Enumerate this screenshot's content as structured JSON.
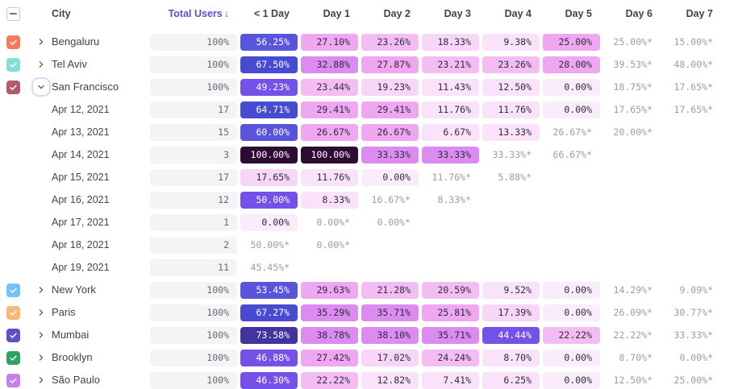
{
  "table": {
    "header": {
      "city": "City",
      "total_users": "Total Users",
      "sort_arrow": "↓",
      "days": [
        "< 1 Day",
        "Day 1",
        "Day 2",
        "Day 3",
        "Day 4",
        "Day 5",
        "Day 6",
        "Day 7"
      ],
      "select_all_state": "indeterminate"
    },
    "rows": [
      {
        "kind": "city",
        "label": "Bengaluru",
        "checkbox_color": "#F87A5E",
        "checked": true,
        "expanded": false,
        "total": "100%",
        "cells": [
          "56.25%",
          "27.10%",
          "23.26%",
          "18.33%",
          "9.38%",
          "25.00%",
          "25.00%*",
          "15.00%*"
        ]
      },
      {
        "kind": "city",
        "label": "Tel Aviv",
        "checkbox_color": "#7FE0D3",
        "checked": true,
        "expanded": false,
        "total": "100%",
        "cells": [
          "67.50%",
          "32.88%",
          "27.87%",
          "23.21%",
          "23.26%",
          "28.00%",
          "39.53%*",
          "48.00%*"
        ]
      },
      {
        "kind": "city",
        "label": "San Francisco",
        "checkbox_color": "#B25B6B",
        "checked": true,
        "expanded": true,
        "total": "100%",
        "cells": [
          "49.23%",
          "23.44%",
          "19.23%",
          "11.43%",
          "12.50%",
          "0.00%",
          "18.75%*",
          "17.65%*"
        ]
      },
      {
        "kind": "date",
        "label": "Apr 12, 2021",
        "total": "17",
        "cells": [
          "64.71%",
          "29.41%",
          "29.41%",
          "11.76%",
          "11.76%",
          "0.00%",
          "17.65%*",
          "17.65%*"
        ]
      },
      {
        "kind": "date",
        "label": "Apr 13, 2021",
        "total": "15",
        "cells": [
          "60.00%",
          "26.67%",
          "26.67%",
          "6.67%",
          "13.33%",
          "26.67%*",
          "20.00%*",
          ""
        ]
      },
      {
        "kind": "date",
        "label": "Apr 14, 2021",
        "total": "3",
        "cells": [
          "100.00%",
          "100.00%",
          "33.33%",
          "33.33%",
          "33.33%*",
          "66.67%*",
          "",
          ""
        ]
      },
      {
        "kind": "date",
        "label": "Apr 15, 2021",
        "total": "17",
        "cells": [
          "17.65%",
          "11.76%",
          "0.00%",
          "11.76%*",
          "5.88%*",
          "",
          "",
          ""
        ]
      },
      {
        "kind": "date",
        "label": "Apr 16, 2021",
        "total": "12",
        "cells": [
          "50.00%",
          "8.33%",
          "16.67%*",
          "8.33%*",
          "",
          "",
          "",
          ""
        ]
      },
      {
        "kind": "date",
        "label": "Apr 17, 2021",
        "total": "1",
        "cells": [
          "0.00%",
          "0.00%*",
          "0.00%*",
          "",
          "",
          "",
          "",
          ""
        ]
      },
      {
        "kind": "date",
        "label": "Apr 18, 2021",
        "total": "2",
        "cells": [
          "50.00%*",
          "0.00%*",
          "",
          "",
          "",
          "",
          "",
          ""
        ]
      },
      {
        "kind": "date",
        "label": "Apr 19, 2021",
        "total": "11",
        "cells": [
          "45.45%*",
          "",
          "",
          "",
          "",
          "",
          "",
          ""
        ]
      },
      {
        "kind": "city",
        "label": "New York",
        "checkbox_color": "#70C3F4",
        "checked": true,
        "expanded": false,
        "total": "100%",
        "cells": [
          "53.45%",
          "29.63%",
          "21.28%",
          "20.59%",
          "9.52%",
          "0.00%",
          "14.29%*",
          "9.09%*"
        ]
      },
      {
        "kind": "city",
        "label": "Paris",
        "checkbox_color": "#FAB87E",
        "checked": true,
        "expanded": false,
        "total": "100%",
        "cells": [
          "67.27%",
          "35.29%",
          "35.71%",
          "25.81%",
          "17.39%",
          "0.00%",
          "26.09%*",
          "30.77%*"
        ]
      },
      {
        "kind": "city",
        "label": "Mumbai",
        "checkbox_color": "#5C51CB",
        "checked": true,
        "expanded": false,
        "total": "100%",
        "cells": [
          "73.58%",
          "38.78%",
          "38.10%",
          "35.71%",
          "44.44%",
          "22.22%",
          "22.22%*",
          "33.33%*"
        ]
      },
      {
        "kind": "city",
        "label": "Brooklyn",
        "checkbox_color": "#30A364",
        "checked": true,
        "expanded": false,
        "total": "100%",
        "cells": [
          "46.88%",
          "27.42%",
          "17.02%",
          "24.24%",
          "8.70%",
          "0.00%",
          "8.70%*",
          "0.00%*"
        ]
      },
      {
        "kind": "city",
        "label": "São Paulo",
        "checkbox_color": "#C77FE9",
        "checked": true,
        "expanded": false,
        "total": "100%",
        "cells": [
          "46.30%",
          "22.22%",
          "12.82%",
          "7.41%",
          "6.25%",
          "0.00%",
          "12.50%*",
          "25.00%*"
        ]
      }
    ]
  },
  "colors": {
    "accent_sort": "#5A50D5",
    "partial_text": "#9C9CA6",
    "total_pill_bg": "#F4F3F6",
    "total_pill_text": "#68676F",
    "light_cell_text": "#2E2E3A",
    "ramp": [
      {
        "min": 90,
        "bg": "#2E0B34",
        "fg": "#FFFFFF"
      },
      {
        "min": 68,
        "bg": "#43339F",
        "fg": "#FFFFFF"
      },
      {
        "min": 62,
        "bg": "#464BD2",
        "fg": "#FFFFFF"
      },
      {
        "min": 52,
        "bg": "#5954DC",
        "fg": "#FFFFFF"
      },
      {
        "min": 40,
        "bg": "#7550E9",
        "fg": "#FFFFFF"
      },
      {
        "min": 31,
        "bg": "#DC8BF0",
        "fg": "#2E2E3A"
      },
      {
        "min": 25,
        "bg": "#EFA7F2",
        "fg": "#2E2E3A"
      },
      {
        "min": 20,
        "bg": "#F3BDF4",
        "fg": "#2E2E3A"
      },
      {
        "min": 14,
        "bg": "#F7D6F8",
        "fg": "#2E2E3A"
      },
      {
        "min": 5,
        "bg": "#FAE3FA",
        "fg": "#2E2E3A"
      },
      {
        "min": 0,
        "bg": "#FBECFC",
        "fg": "#2E2E3A"
      }
    ]
  }
}
